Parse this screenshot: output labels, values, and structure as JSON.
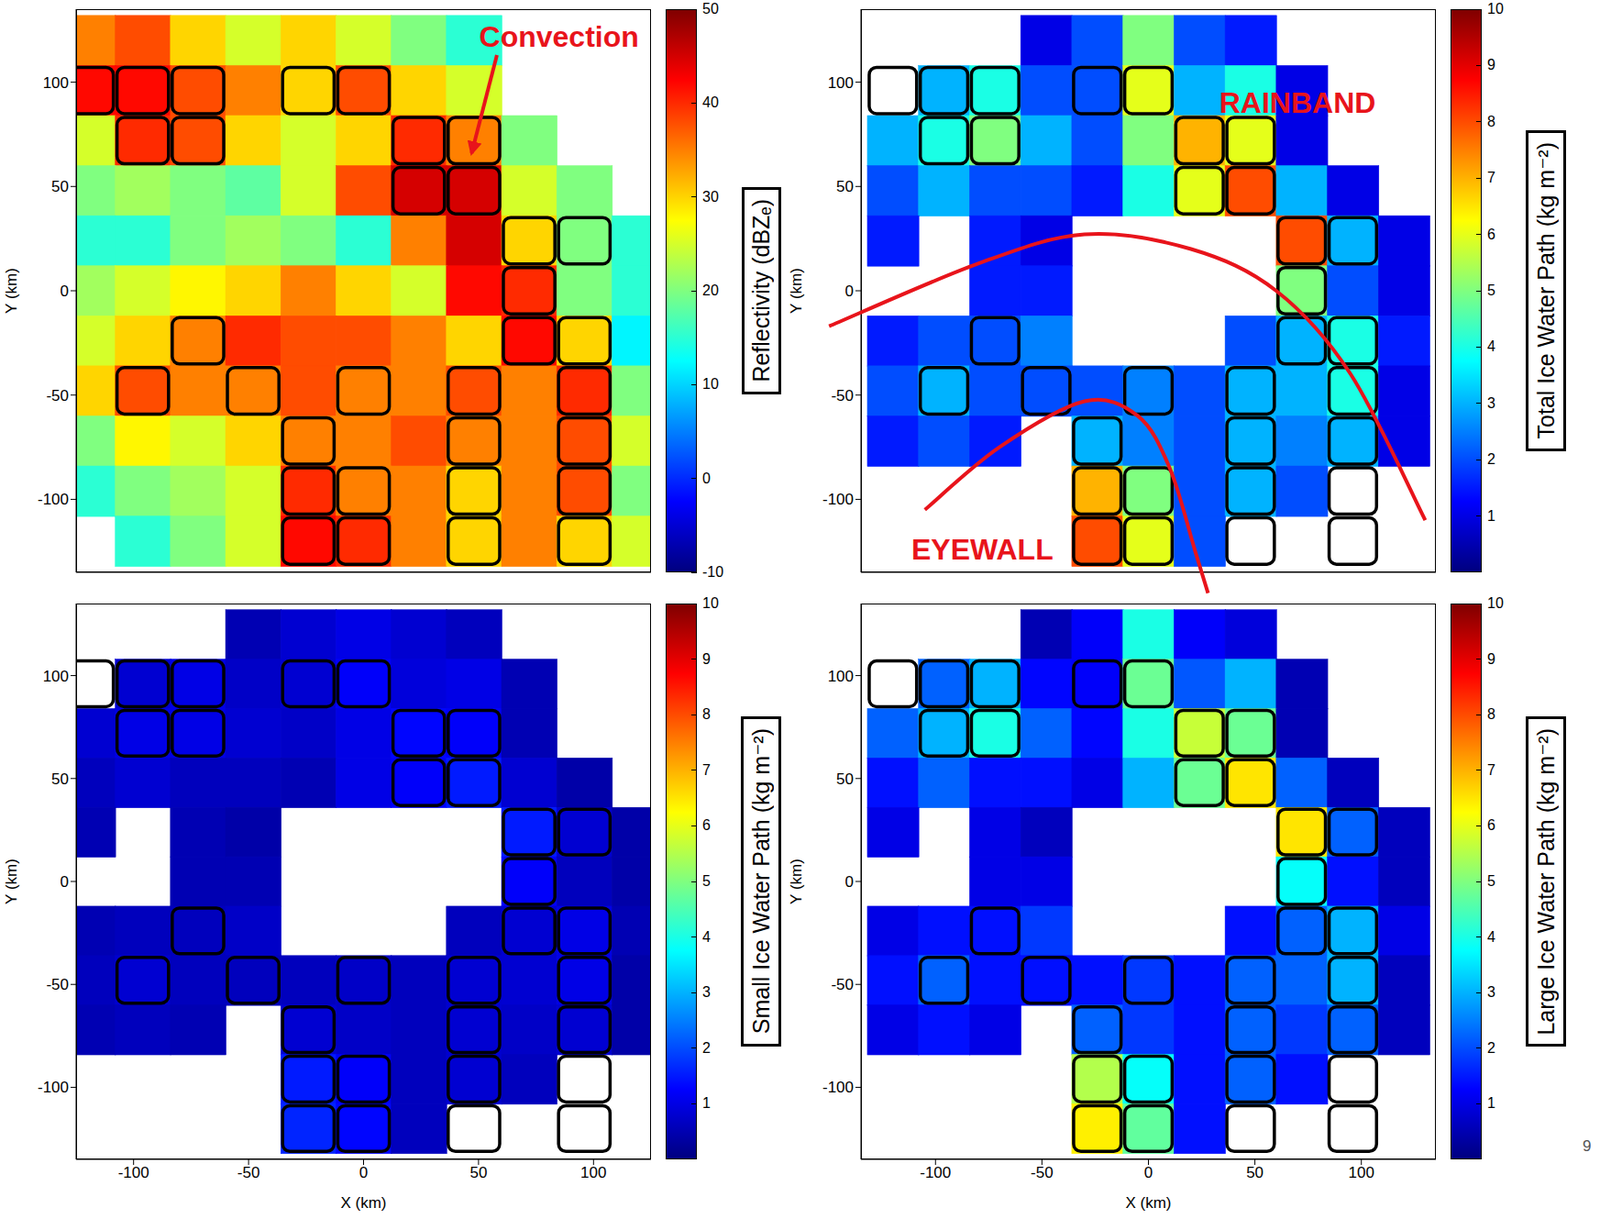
{
  "page_number": "9",
  "chart_data": [
    {
      "type": "heatmap",
      "y_label": "Y (km)",
      "tick_labels": "y",
      "x": [
        -120,
        -96,
        -72,
        -48,
        -24,
        0,
        24,
        48,
        72,
        96,
        120
      ],
      "y": [
        120,
        96,
        72,
        48,
        24,
        0,
        -24,
        -48,
        -72,
        -96,
        -120
      ],
      "xlim": [
        -125,
        125
      ],
      "ylim": [
        -135,
        135
      ],
      "yticks": [
        -100,
        -50,
        0,
        50,
        100
      ],
      "values": [
        [
          35,
          38,
          30,
          25,
          30,
          25,
          20,
          15,
          null,
          null,
          null
        ],
        [
          42,
          42,
          38,
          35,
          30,
          38,
          30,
          25,
          null,
          null,
          null
        ],
        [
          25,
          40,
          38,
          30,
          25,
          30,
          40,
          35,
          20,
          null,
          null
        ],
        [
          20,
          22,
          20,
          18,
          25,
          38,
          45,
          45,
          25,
          20,
          null
        ],
        [
          15,
          15,
          20,
          22,
          20,
          15,
          35,
          45,
          30,
          20,
          15
        ],
        [
          22,
          25,
          28,
          30,
          35,
          30,
          25,
          42,
          40,
          20,
          15
        ],
        [
          25,
          30,
          35,
          40,
          38,
          38,
          35,
          30,
          42,
          30,
          12
        ],
        [
          30,
          38,
          35,
          35,
          38,
          35,
          35,
          38,
          35,
          40,
          20
        ],
        [
          20,
          28,
          25,
          30,
          35,
          35,
          38,
          35,
          35,
          38,
          25
        ],
        [
          15,
          20,
          22,
          25,
          40,
          35,
          35,
          30,
          35,
          38,
          20
        ],
        [
          null,
          15,
          20,
          25,
          42,
          40,
          35,
          30,
          35,
          30,
          25
        ]
      ],
      "convection": [
        [
          0,
          0,
          0,
          0,
          0,
          0,
          0,
          0,
          0,
          0,
          0
        ],
        [
          1,
          1,
          1,
          0,
          1,
          1,
          0,
          0,
          0,
          0,
          0
        ],
        [
          0,
          1,
          1,
          0,
          0,
          0,
          1,
          1,
          0,
          0,
          0
        ],
        [
          0,
          0,
          0,
          0,
          0,
          0,
          1,
          1,
          0,
          0,
          0
        ],
        [
          0,
          0,
          0,
          0,
          0,
          0,
          0,
          0,
          1,
          1,
          0
        ],
        [
          0,
          0,
          0,
          0,
          0,
          0,
          0,
          0,
          1,
          0,
          0
        ],
        [
          0,
          0,
          1,
          0,
          0,
          0,
          0,
          0,
          1,
          1,
          0
        ],
        [
          0,
          1,
          0,
          1,
          0,
          1,
          0,
          1,
          0,
          1,
          0
        ],
        [
          0,
          0,
          0,
          0,
          1,
          0,
          0,
          1,
          0,
          1,
          0
        ],
        [
          0,
          0,
          0,
          0,
          1,
          1,
          0,
          1,
          0,
          1,
          0
        ],
        [
          0,
          0,
          0,
          0,
          1,
          1,
          0,
          1,
          0,
          1,
          0
        ]
      ],
      "colorbar": {
        "label": "Reflectivity (dBZₑ)",
        "range": [
          -10,
          50
        ],
        "ticks": [
          -10,
          0,
          10,
          20,
          30,
          40,
          50
        ]
      },
      "annotations": [
        {
          "text": "Convection"
        }
      ]
    },
    {
      "type": "heatmap",
      "y_label": "Y (km)",
      "tick_labels": "y",
      "x": [
        -120,
        -96,
        -72,
        -48,
        -24,
        0,
        24,
        48,
        72,
        96,
        120
      ],
      "y": [
        120,
        96,
        72,
        48,
        24,
        0,
        -24,
        -48,
        -72,
        -96,
        -120
      ],
      "xlim": [
        -135,
        135
      ],
      "ylim": [
        -135,
        135
      ],
      "yticks": [
        -100,
        -50,
        0,
        50,
        100
      ],
      "values": [
        [
          null,
          null,
          null,
          1,
          2,
          5,
          2,
          1.5,
          null,
          null,
          null
        ],
        [
          null,
          3,
          4,
          2,
          2,
          6,
          3,
          4,
          1,
          null,
          null
        ],
        [
          3,
          4,
          5,
          3,
          2,
          5,
          7,
          6,
          1,
          null,
          null
        ],
        [
          2,
          3,
          2,
          2,
          1.5,
          4,
          6,
          8,
          3,
          1,
          null
        ],
        [
          1.5,
          null,
          1.5,
          1,
          null,
          null,
          null,
          null,
          8,
          3,
          1
        ],
        [
          null,
          null,
          1.5,
          1.5,
          null,
          null,
          null,
          null,
          5,
          2,
          1
        ],
        [
          1.5,
          2,
          2,
          2.5,
          null,
          null,
          null,
          2,
          3,
          4,
          1.5
        ],
        [
          2,
          3,
          2,
          2,
          2,
          2.5,
          2,
          3,
          3,
          4,
          1
        ],
        [
          1.5,
          2,
          1.5,
          null,
          3,
          2.5,
          2,
          3,
          2.5,
          3,
          1
        ],
        [
          null,
          null,
          null,
          null,
          7,
          5,
          2,
          3,
          2,
          null,
          null
        ],
        [
          null,
          null,
          null,
          null,
          8,
          6,
          2,
          null,
          null,
          null,
          null
        ]
      ],
      "convection": [
        [
          0,
          0,
          0,
          0,
          0,
          0,
          0,
          0,
          0,
          0,
          0
        ],
        [
          1,
          1,
          1,
          0,
          1,
          1,
          0,
          0,
          0,
          0,
          0
        ],
        [
          0,
          1,
          1,
          0,
          0,
          0,
          1,
          1,
          0,
          0,
          0
        ],
        [
          0,
          0,
          0,
          0,
          0,
          0,
          1,
          1,
          0,
          0,
          0
        ],
        [
          0,
          0,
          0,
          0,
          0,
          0,
          0,
          0,
          1,
          1,
          0
        ],
        [
          0,
          0,
          0,
          0,
          0,
          0,
          0,
          0,
          1,
          0,
          0
        ],
        [
          0,
          0,
          1,
          0,
          0,
          0,
          0,
          0,
          1,
          1,
          0
        ],
        [
          0,
          1,
          0,
          1,
          0,
          1,
          0,
          1,
          0,
          1,
          0
        ],
        [
          0,
          0,
          0,
          0,
          1,
          0,
          0,
          1,
          0,
          1,
          0
        ],
        [
          0,
          0,
          0,
          0,
          1,
          1,
          0,
          1,
          0,
          1,
          0
        ],
        [
          0,
          0,
          0,
          0,
          1,
          1,
          0,
          1,
          0,
          1,
          0
        ]
      ],
      "colorbar": {
        "label": "Total Ice Water Path (kg m⁻²)",
        "range": [
          0,
          10
        ],
        "ticks": [
          1,
          2,
          3,
          4,
          5,
          6,
          7,
          8,
          9,
          10
        ]
      },
      "annotations": [
        {
          "text": "RAINBAND"
        },
        {
          "text": "EYEWALL"
        }
      ]
    },
    {
      "type": "heatmap",
      "x_label": "X (km)",
      "y_label": "Y (km)",
      "x": [
        -120,
        -96,
        -72,
        -48,
        -24,
        0,
        24,
        48,
        72,
        96,
        120
      ],
      "y": [
        120,
        96,
        72,
        48,
        24,
        0,
        -24,
        -48,
        -72,
        -96,
        -120
      ],
      "xlim": [
        -125,
        125
      ],
      "ylim": [
        -135,
        135
      ],
      "xticks": [
        -100,
        -50,
        0,
        50,
        100
      ],
      "yticks": [
        -100,
        -50,
        0,
        50,
        100
      ],
      "values": [
        [
          null,
          null,
          null,
          0.5,
          0.8,
          1,
          0.8,
          0.6,
          null,
          null,
          null
        ],
        [
          null,
          0.8,
          1,
          0.7,
          0.8,
          1.2,
          0.9,
          1,
          0.5,
          null,
          null
        ],
        [
          0.8,
          1,
          1,
          0.8,
          0.7,
          1,
          1.3,
          1.2,
          0.5,
          null,
          null
        ],
        [
          0.6,
          0.8,
          0.6,
          0.6,
          0.5,
          1,
          1.2,
          1.5,
          0.8,
          0.4,
          null
        ],
        [
          0.5,
          null,
          0.5,
          0.4,
          null,
          null,
          null,
          null,
          1.5,
          0.8,
          0.4
        ],
        [
          null,
          null,
          0.5,
          0.5,
          null,
          null,
          null,
          null,
          1.2,
          0.6,
          0.4
        ],
        [
          0.5,
          0.6,
          0.6,
          0.7,
          null,
          null,
          null,
          0.6,
          0.8,
          1,
          0.5
        ],
        [
          0.6,
          0.8,
          0.6,
          0.6,
          0.6,
          0.7,
          0.6,
          0.8,
          0.8,
          1,
          0.4
        ],
        [
          0.5,
          0.6,
          0.5,
          null,
          0.8,
          0.7,
          0.6,
          0.8,
          0.7,
          0.8,
          0.4
        ],
        [
          null,
          null,
          null,
          null,
          1.5,
          1.2,
          0.6,
          0.8,
          0.6,
          null,
          null
        ],
        [
          null,
          null,
          null,
          null,
          1.6,
          1.3,
          0.6,
          null,
          null,
          null,
          null
        ]
      ],
      "convection": [
        [
          0,
          0,
          0,
          0,
          0,
          0,
          0,
          0,
          0,
          0,
          0
        ],
        [
          1,
          1,
          1,
          0,
          1,
          1,
          0,
          0,
          0,
          0,
          0
        ],
        [
          0,
          1,
          1,
          0,
          0,
          0,
          1,
          1,
          0,
          0,
          0
        ],
        [
          0,
          0,
          0,
          0,
          0,
          0,
          1,
          1,
          0,
          0,
          0
        ],
        [
          0,
          0,
          0,
          0,
          0,
          0,
          0,
          0,
          1,
          1,
          0
        ],
        [
          0,
          0,
          0,
          0,
          0,
          0,
          0,
          0,
          1,
          0,
          0
        ],
        [
          0,
          0,
          1,
          0,
          0,
          0,
          0,
          0,
          1,
          1,
          0
        ],
        [
          0,
          1,
          0,
          1,
          0,
          1,
          0,
          1,
          0,
          1,
          0
        ],
        [
          0,
          0,
          0,
          0,
          1,
          0,
          0,
          1,
          0,
          1,
          0
        ],
        [
          0,
          0,
          0,
          0,
          1,
          1,
          0,
          1,
          0,
          1,
          0
        ],
        [
          0,
          0,
          0,
          0,
          1,
          1,
          0,
          1,
          0,
          1,
          0
        ]
      ],
      "colorbar": {
        "label": "Small Ice Water Path (kg m⁻²)",
        "range": [
          0,
          10
        ],
        "ticks": [
          1,
          2,
          3,
          4,
          5,
          6,
          7,
          8,
          9,
          10
        ]
      }
    },
    {
      "type": "heatmap",
      "x_label": "X (km)",
      "y_label": "Y (km)",
      "x": [
        -120,
        -96,
        -72,
        -48,
        -24,
        0,
        24,
        48,
        72,
        96,
        120
      ],
      "y": [
        120,
        96,
        72,
        48,
        24,
        0,
        -24,
        -48,
        -72,
        -96,
        -120
      ],
      "xlim": [
        -135,
        135
      ],
      "ylim": [
        -135,
        135
      ],
      "xticks": [
        -100,
        -50,
        0,
        50,
        100
      ],
      "yticks": [
        -100,
        -50,
        0,
        50,
        100
      ],
      "values": [
        [
          null,
          null,
          null,
          0.5,
          1.2,
          4,
          1.2,
          0.9,
          null,
          null,
          null
        ],
        [
          null,
          2.2,
          3,
          1.3,
          1.2,
          4.8,
          2.1,
          3,
          0.5,
          null,
          null
        ],
        [
          2.2,
          3,
          4,
          2.2,
          1.3,
          4,
          5.7,
          4.8,
          0.5,
          null,
          null
        ],
        [
          1.4,
          2.2,
          1.4,
          1.4,
          1,
          3,
          4.8,
          6.5,
          2.2,
          0.6,
          null
        ],
        [
          1,
          null,
          1,
          0.6,
          null,
          null,
          null,
          null,
          6.5,
          2.2,
          0.6
        ],
        [
          null,
          null,
          1,
          1,
          null,
          null,
          null,
          null,
          3.8,
          1.4,
          0.6
        ],
        [
          1,
          1.4,
          1.4,
          1.8,
          null,
          null,
          null,
          1.4,
          2.2,
          3,
          1
        ],
        [
          1.4,
          2.2,
          1.4,
          1.4,
          1.4,
          1.8,
          1.4,
          2.2,
          2.2,
          3,
          0.6
        ],
        [
          1,
          1.4,
          1,
          null,
          2.2,
          1.8,
          1.4,
          2.2,
          1.8,
          2.2,
          0.6
        ],
        [
          null,
          null,
          null,
          null,
          5.5,
          3.8,
          1.4,
          2.2,
          1.4,
          null,
          null
        ],
        [
          null,
          null,
          null,
          null,
          6.4,
          4.7,
          1.4,
          null,
          null,
          null,
          null
        ]
      ],
      "convection": [
        [
          0,
          0,
          0,
          0,
          0,
          0,
          0,
          0,
          0,
          0,
          0
        ],
        [
          1,
          1,
          1,
          0,
          1,
          1,
          0,
          0,
          0,
          0,
          0
        ],
        [
          0,
          1,
          1,
          0,
          0,
          0,
          1,
          1,
          0,
          0,
          0
        ],
        [
          0,
          0,
          0,
          0,
          0,
          0,
          1,
          1,
          0,
          0,
          0
        ],
        [
          0,
          0,
          0,
          0,
          0,
          0,
          0,
          0,
          1,
          1,
          0
        ],
        [
          0,
          0,
          0,
          0,
          0,
          0,
          0,
          0,
          1,
          0,
          0
        ],
        [
          0,
          0,
          1,
          0,
          0,
          0,
          0,
          0,
          1,
          1,
          0
        ],
        [
          0,
          1,
          0,
          1,
          0,
          1,
          0,
          1,
          0,
          1,
          0
        ],
        [
          0,
          0,
          0,
          0,
          1,
          0,
          0,
          1,
          0,
          1,
          0
        ],
        [
          0,
          0,
          0,
          0,
          1,
          1,
          0,
          1,
          0,
          1,
          0
        ],
        [
          0,
          0,
          0,
          0,
          1,
          1,
          0,
          1,
          0,
          1,
          0
        ]
      ],
      "colorbar": {
        "label": "Large Ice Water Path (kg m⁻²)",
        "range": [
          0,
          10
        ],
        "ticks": [
          1,
          2,
          3,
          4,
          5,
          6,
          7,
          8,
          9,
          10
        ]
      }
    }
  ]
}
